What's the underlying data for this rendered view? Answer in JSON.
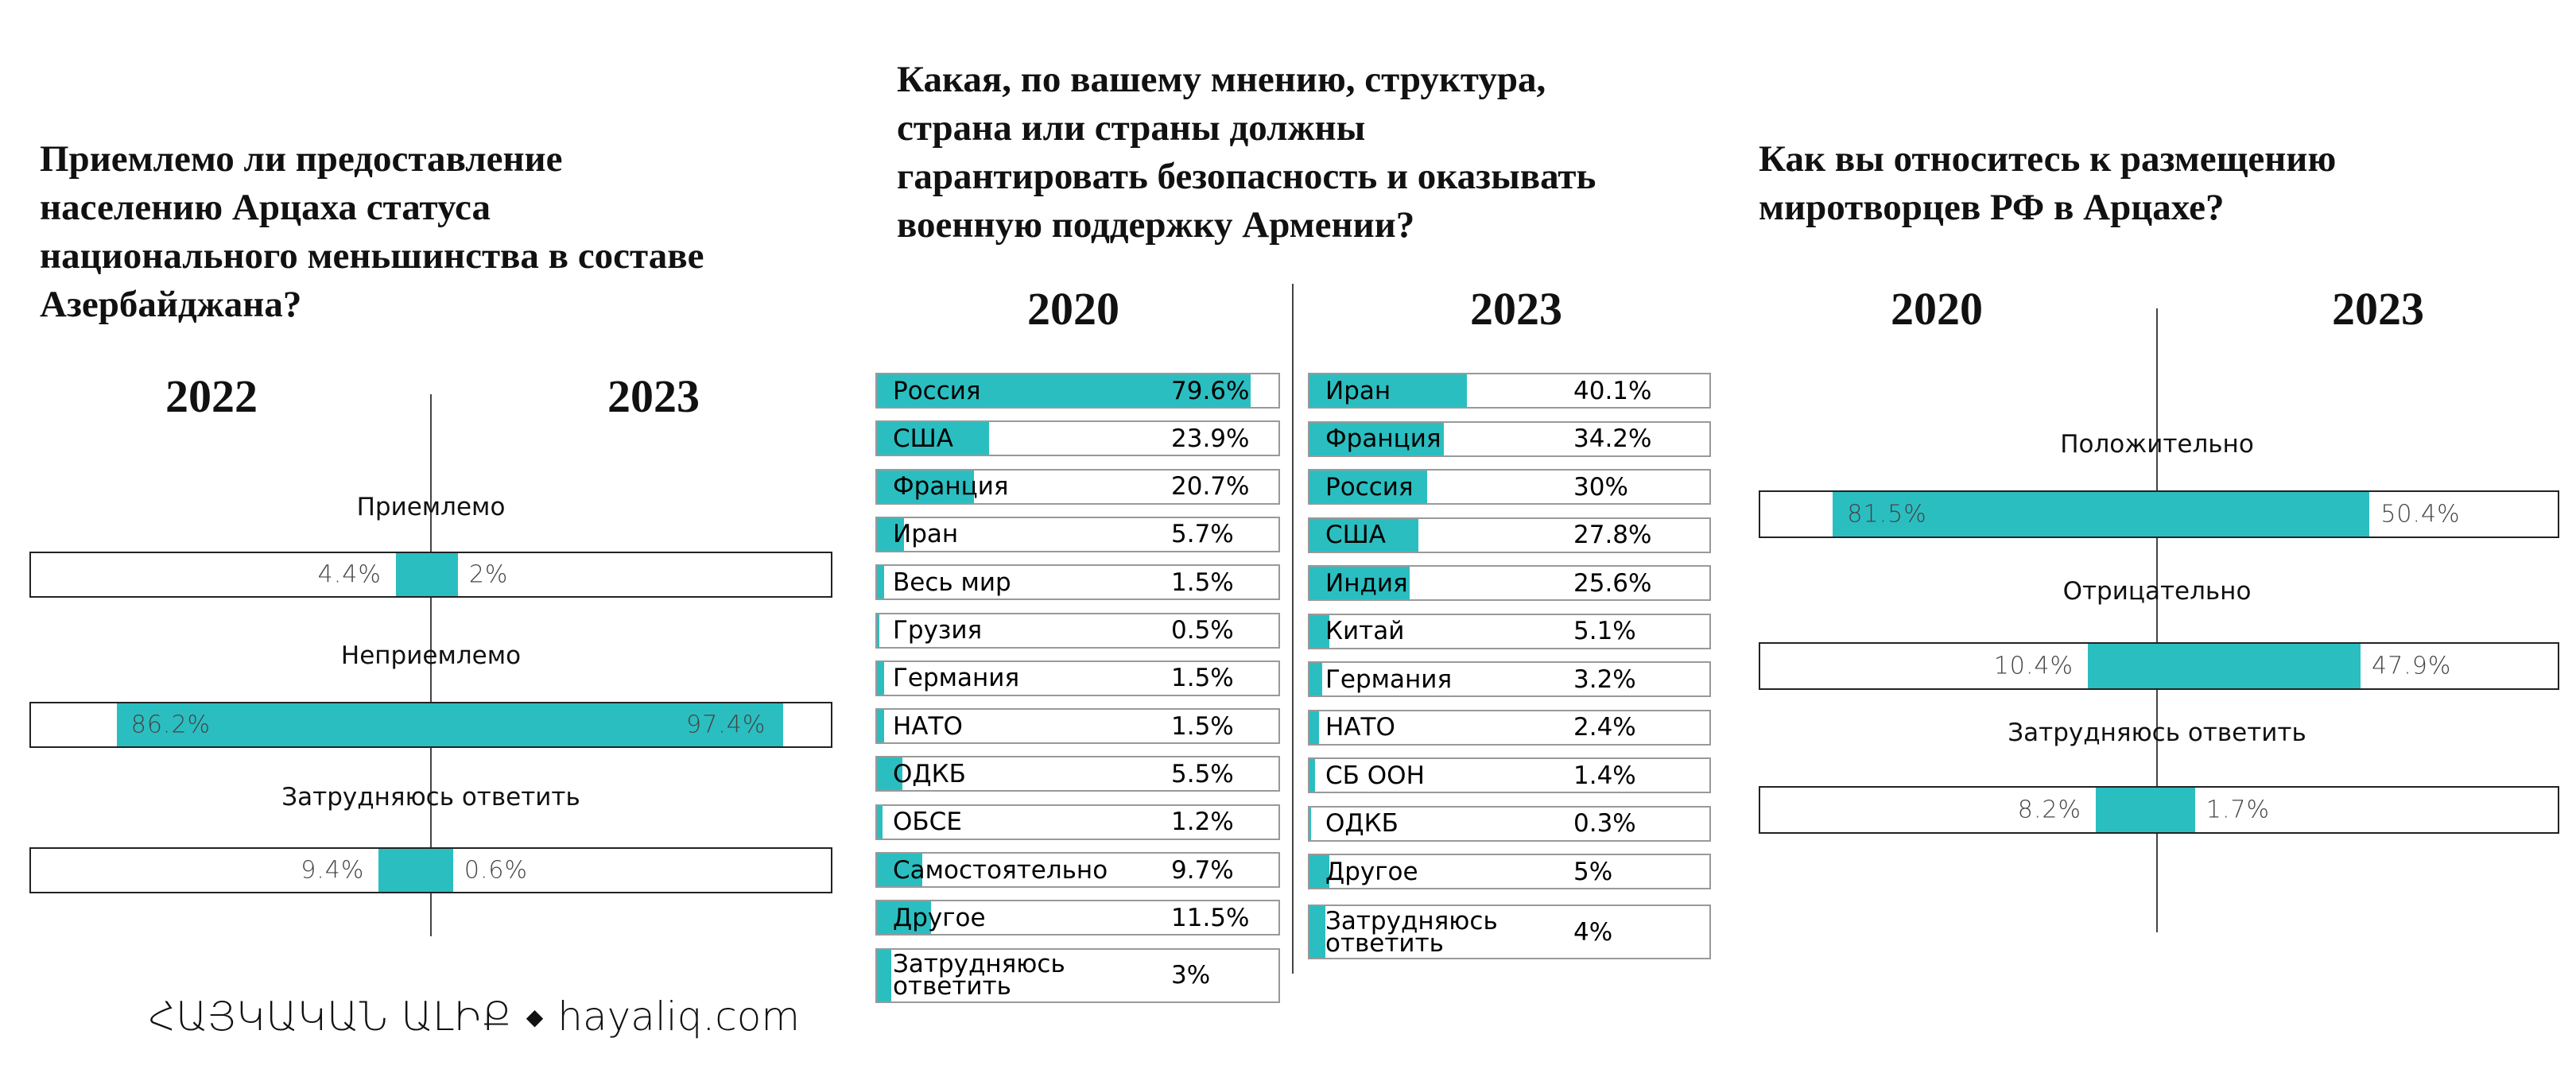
{
  "colors": {
    "fill": "#2bbec0",
    "border": "#222222"
  },
  "chart_data": [
    {
      "type": "bar",
      "subtype": "diverging",
      "title": "Приемлемо ли предоставление населению Арцаха статуса национального меньшинства в составе Азербайджана?",
      "title_lines": [
        "Приемлемо ли предоставление",
        "населению Арцаха статуса",
        "национального меньшинства в составе",
        "Азербайджана?"
      ],
      "years": [
        "2022",
        "2023"
      ],
      "categories": [
        "Приемлемо",
        "Неприемлемо",
        "Затрудняюсь ответить"
      ],
      "series": [
        {
          "name": "2022",
          "values": [
            4.4,
            86.2,
            9.4
          ]
        },
        {
          "name": "2023",
          "values": [
            2,
            97.4,
            0.6
          ]
        }
      ],
      "labels_left": [
        "4.4%",
        "86.2%",
        "9.4%"
      ],
      "labels_right": [
        "2%",
        "97.4%",
        "0.6%"
      ],
      "unit": "%"
    },
    {
      "type": "bar",
      "subtype": "horizontal-paired",
      "title": "Какая, по вашему мнению, структура, страна или страны должны гарантировать безопасность и оказывать военную поддержку Армении?",
      "title_lines": [
        "Какая, по вашему мнению, структура,",
        "страна или страны должны",
        "гарантировать безопасность и оказывать",
        "военную поддержку Армении?"
      ],
      "panels": [
        {
          "year": "2020",
          "categories": [
            "Россия",
            "США",
            "Франция",
            "Иран",
            "Весь мир",
            "Грузия",
            "Германия",
            "НАТО",
            "ОДКБ",
            "ОБСЕ",
            "Самостоятельно",
            "Другое",
            "Затрудняюсь ответить"
          ],
          "values": [
            79.6,
            23.9,
            20.7,
            5.7,
            1.5,
            0.5,
            1.5,
            1.5,
            5.5,
            1.2,
            9.7,
            11.5,
            3
          ],
          "labels": [
            "79.6%",
            "23.9%",
            "20.7%",
            "5.7%",
            "1.5%",
            "0.5%",
            "1.5%",
            "1.5%",
            "5.5%",
            "1.2%",
            "9.7%",
            "11.5%",
            "3%"
          ]
        },
        {
          "year": "2023",
          "categories": [
            "Иран",
            "Франция",
            "Россия",
            "США",
            "Индия",
            "Китай",
            "Германия",
            "НАТО",
            "СБ ООН",
            "ОДКБ",
            "Другое",
            "Затрудняюсь ответить"
          ],
          "values": [
            40.1,
            34.2,
            30,
            27.8,
            25.6,
            5.1,
            3.2,
            2.4,
            1.4,
            0.3,
            5,
            4
          ],
          "labels": [
            "40.1%",
            "34.2%",
            "30%",
            "27.8%",
            "25.6%",
            "5.1%",
            "3.2%",
            "2.4%",
            "1.4%",
            "0.3%",
            "5%",
            "4%"
          ]
        }
      ],
      "unit": "%"
    },
    {
      "type": "bar",
      "subtype": "diverging",
      "title": "Как вы относитесь к размещению миротворцев РФ в Арцахе?",
      "title_lines": [
        "Как вы относитесь к размещению",
        "миротворцев РФ в Арцахе?"
      ],
      "years": [
        "2020",
        "2023"
      ],
      "categories": [
        "Положительно",
        "Отрицательно",
        "Затрудняюсь ответить"
      ],
      "series": [
        {
          "name": "2020",
          "values": [
            81.5,
            10.4,
            8.2
          ]
        },
        {
          "name": "2023",
          "values": [
            50.4,
            47.9,
            1.7
          ]
        }
      ],
      "labels_left": [
        "81.5%",
        "10.4%",
        "8.2%"
      ],
      "labels_right": [
        "50.4%",
        "47.9%",
        "1.7%"
      ],
      "unit": "%"
    }
  ],
  "footer": {
    "logo_text": "ՀԱՅԿԱԿԱՆ ԱԼԻՔ",
    "separator": "◆",
    "site": "hayaliq.com"
  }
}
